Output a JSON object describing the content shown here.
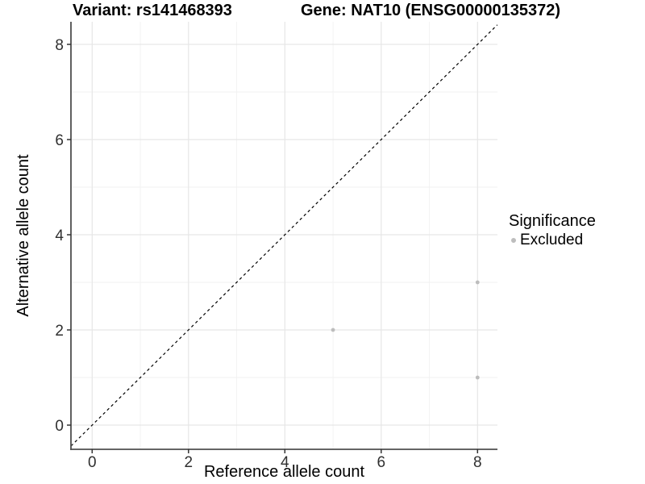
{
  "header": {
    "variant_title": "Variant: rs141468393",
    "gene_title": "Gene: NAT10 (ENSG00000135372)"
  },
  "chart_data": {
    "type": "scatter",
    "title": "Variant: rs141468393 — Gene: NAT10 (ENSG00000135372)",
    "xlabel": "Reference allele count",
    "ylabel": "Alternative allele count",
    "x_ticks": [
      0,
      2,
      4,
      6,
      8
    ],
    "y_ticks": [
      0,
      2,
      4,
      6,
      8
    ],
    "x_minor_ticks": [
      1,
      3,
      5,
      7
    ],
    "y_minor_ticks": [
      1,
      3,
      5,
      7
    ],
    "xlim": [
      -0.44,
      8.41
    ],
    "ylim": [
      -0.51,
      8.47
    ],
    "grid": "major and minor, light gray on white",
    "legend_position": "right",
    "series": [
      {
        "name": "Excluded",
        "color": "#bdbdbd",
        "points": [
          {
            "x": 5,
            "y": 2
          },
          {
            "x": 8,
            "y": 3
          },
          {
            "x": 8,
            "y": 1
          }
        ]
      }
    ],
    "reference_line": {
      "kind": "identity y=x",
      "style": "dashed",
      "color": "#000000"
    }
  },
  "legend": {
    "title": "Significance",
    "items": [
      {
        "label": "Excluded",
        "color": "#bdbdbd"
      }
    ]
  },
  "colors": {
    "background": "#ffffff",
    "grid_major": "#e6e6e6",
    "grid_minor": "#f2f2f2",
    "axis_line": "#4f4f4f",
    "tick_mark": "#333333",
    "tick_label": "#303030",
    "point": "#bdbdbd",
    "dashed_line": "#000000"
  }
}
